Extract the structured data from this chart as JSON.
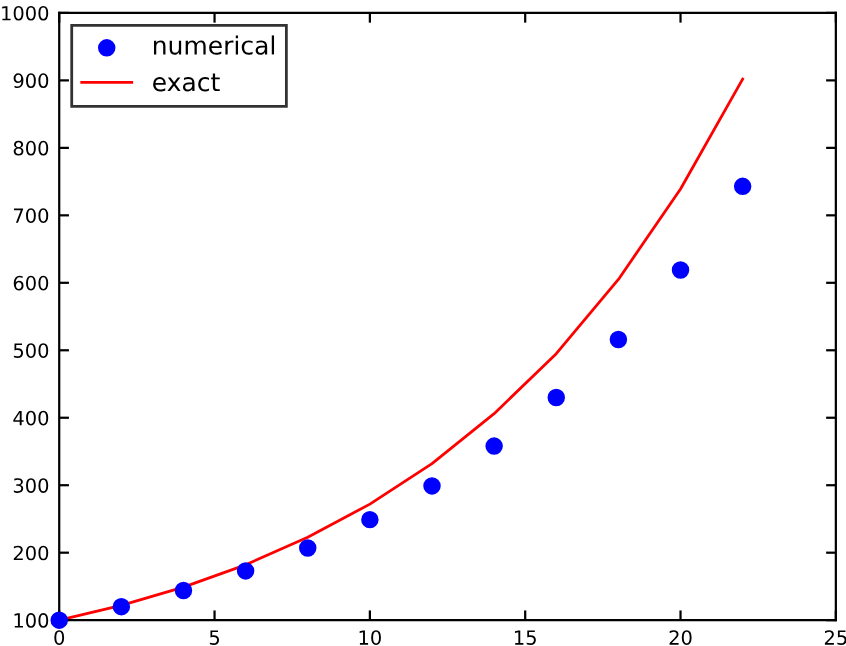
{
  "chart_data": {
    "type": "scatter",
    "x": [
      0,
      2,
      4,
      6,
      8,
      10,
      12,
      14,
      16,
      18,
      20,
      22
    ],
    "series": [
      {
        "name": "numerical",
        "color": "#0000ff",
        "marker": "circle",
        "values": [
          100,
          120,
          144,
          173,
          207,
          249,
          299,
          358,
          430,
          516,
          619,
          743
        ]
      },
      {
        "name": "exact",
        "type": "line",
        "color": "#ff0000",
        "marker": "none",
        "line_style": "solid",
        "values": [
          100,
          122,
          149,
          182,
          223,
          272,
          332,
          406,
          495,
          605,
          739,
          902
        ]
      }
    ],
    "xlim": [
      0,
      25
    ],
    "xticks": [
      0,
      5,
      10,
      15,
      20,
      25
    ],
    "ylim": [
      100,
      1000
    ],
    "yticks": [
      100,
      200,
      300,
      400,
      500,
      600,
      700,
      800,
      900,
      1000
    ],
    "grid": false,
    "legend": "top left"
  }
}
